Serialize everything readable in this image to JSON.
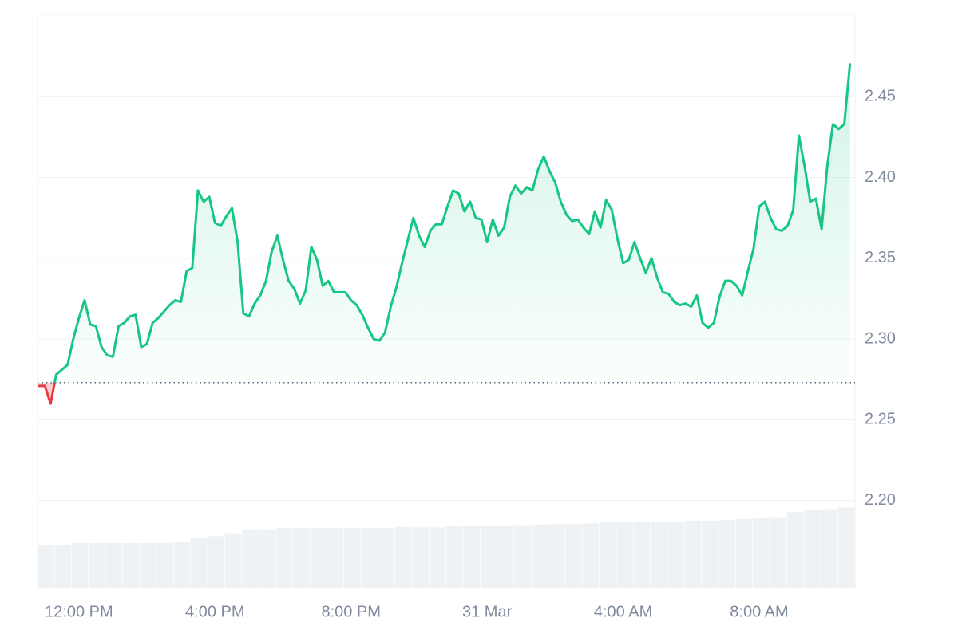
{
  "chart_data": {
    "type": "line",
    "x": [
      -70,
      -60,
      -50,
      -40,
      -30,
      -20,
      -10,
      0,
      10,
      20,
      30,
      40,
      50,
      60,
      70,
      80,
      90,
      100,
      110,
      120,
      130,
      140,
      150,
      160,
      170,
      180,
      190,
      200,
      210,
      220,
      230,
      240,
      250,
      260,
      270,
      280,
      290,
      300,
      310,
      320,
      330,
      340,
      350,
      360,
      370,
      380,
      390,
      400,
      410,
      420,
      430,
      440,
      450,
      460,
      470,
      480,
      490,
      500,
      510,
      520,
      530,
      540,
      550,
      560,
      570,
      580,
      590,
      600,
      610,
      620,
      630,
      640,
      650,
      660,
      670,
      680,
      690,
      700,
      710,
      720,
      730,
      740,
      750,
      760,
      770,
      780,
      790,
      800,
      810,
      820,
      830,
      840,
      850,
      860,
      870,
      880,
      890,
      900,
      910,
      920,
      930,
      940,
      950,
      960,
      970,
      980,
      990,
      1000,
      1010,
      1020,
      1030,
      1040,
      1050,
      1060,
      1070,
      1080,
      1090,
      1100,
      1110,
      1120,
      1130,
      1140,
      1150,
      1160,
      1170,
      1180,
      1190,
      1200,
      1210,
      1220,
      1230,
      1240,
      1250,
      1260,
      1270,
      1280,
      1290,
      1300,
      1310,
      1320,
      1330,
      1340,
      1350,
      1360
    ],
    "series": [
      {
        "color": "#16c784",
        "down_color": "#ea3943",
        "values": [
          2.271,
          2.271,
          2.26,
          2.278,
          2.281,
          2.284,
          2.3,
          2.313,
          2.324,
          2.309,
          2.308,
          2.295,
          2.29,
          2.289,
          2.308,
          2.31,
          2.314,
          2.315,
          2.295,
          2.297,
          2.31,
          2.313,
          2.317,
          2.321,
          2.324,
          2.323,
          2.342,
          2.344,
          2.392,
          2.385,
          2.388,
          2.372,
          2.37,
          2.376,
          2.381,
          2.36,
          2.316,
          2.314,
          2.322,
          2.327,
          2.336,
          2.354,
          2.364,
          2.349,
          2.336,
          2.331,
          2.322,
          2.33,
          2.357,
          2.349,
          2.333,
          2.336,
          2.329,
          2.329,
          2.329,
          2.324,
          2.321,
          2.315,
          2.307,
          2.3,
          2.299,
          2.304,
          2.32,
          2.332,
          2.347,
          2.361,
          2.375,
          2.364,
          2.357,
          2.367,
          2.371,
          2.371,
          2.382,
          2.392,
          2.39,
          2.379,
          2.385,
          2.375,
          2.374,
          2.36,
          2.374,
          2.364,
          2.369,
          2.388,
          2.395,
          2.39,
          2.394,
          2.392,
          2.405,
          2.413,
          2.404,
          2.397,
          2.385,
          2.377,
          2.373,
          2.374,
          2.369,
          2.365,
          2.379,
          2.369,
          2.386,
          2.38,
          2.362,
          2.347,
          2.349,
          2.36,
          2.35,
          2.341,
          2.35,
          2.338,
          2.329,
          2.328,
          2.323,
          2.321,
          2.322,
          2.32,
          2.327,
          2.31,
          2.307,
          2.31,
          2.326,
          2.336,
          2.336,
          2.333,
          2.327,
          2.342,
          2.356,
          2.382,
          2.385,
          2.375,
          2.368,
          2.367,
          2.37,
          2.38,
          2.426,
          2.407,
          2.385,
          2.387,
          2.368,
          2.407,
          2.433,
          2.43,
          2.433,
          2.47
        ]
      }
    ],
    "baseline": 2.273,
    "volume": {
      "axis": "y2",
      "color": "#eff2f5",
      "values": [
        7.5,
        7.5,
        7.8,
        7.8,
        7.8,
        7.8,
        7.8,
        7.8,
        8.0,
        8.6,
        9.0,
        9.5,
        10.2,
        10.2,
        10.4,
        10.4,
        10.4,
        10.4,
        10.4,
        10.4,
        10.4,
        10.6,
        10.5,
        10.5,
        10.7,
        10.7,
        10.8,
        10.8,
        10.9,
        11.0,
        11.1,
        11.1,
        11.2,
        11.4,
        11.4,
        11.4,
        11.4,
        11.5,
        11.7,
        11.7,
        11.8,
        12.0,
        12.1,
        12.3,
        13.2,
        13.5,
        13.7,
        14.0
      ]
    },
    "xlim": [
      -73,
      1369
    ],
    "xticks": [
      {
        "value": 0,
        "label": "12:00 PM"
      },
      {
        "value": 240,
        "label": "4:00 PM"
      },
      {
        "value": 480,
        "label": "8:00 PM"
      },
      {
        "value": 720,
        "label": "31 Mar"
      },
      {
        "value": 960,
        "label": "4:00 AM"
      },
      {
        "value": 1200,
        "label": "8:00 AM"
      }
    ],
    "ylim": [
      2.146,
      2.501
    ],
    "yticks": [
      {
        "value": 2.2,
        "label": "2.20"
      },
      2.25,
      {
        "value": 2.3,
        "label": "2.30"
      },
      2.35,
      {
        "value": 2.4,
        "label": "2.40"
      },
      2.45
    ],
    "y2lim": [
      0,
      100
    ],
    "y2ticks": [],
    "grid": true
  }
}
